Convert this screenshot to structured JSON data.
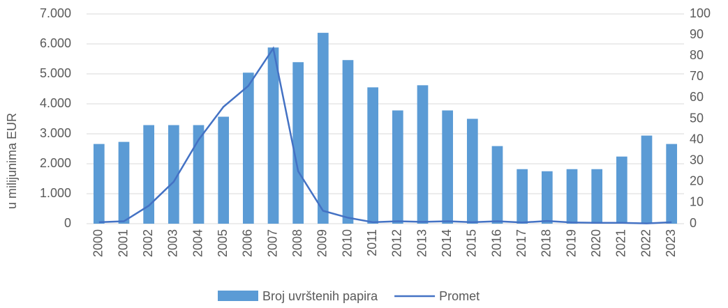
{
  "chart_data": {
    "type": "bar",
    "ylabel": "u milijunima EUR",
    "categories": [
      "2000",
      "2001",
      "2002",
      "2003",
      "2004",
      "2005",
      "2006",
      "2007",
      "2008",
      "2009",
      "2010",
      "2011",
      "2012",
      "2013",
      "2014",
      "2015",
      "2016",
      "2017",
      "2018",
      "2019",
      "2020",
      "2021",
      "2022",
      "2023"
    ],
    "series": [
      {
        "name": "Broj uvrštenih papira",
        "type": "bar",
        "axis": "y2",
        "color": "#5b9bd5",
        "values": [
          38,
          39,
          47,
          47,
          47,
          51,
          72,
          84,
          77,
          91,
          78,
          65,
          54,
          66,
          54,
          50,
          37,
          26,
          25,
          26,
          26,
          32,
          42,
          38
        ]
      },
      {
        "name": "Promet",
        "type": "line",
        "color": "#4472c4",
        "values": [
          50,
          80,
          600,
          1400,
          2800,
          3900,
          4600,
          5850,
          1750,
          430,
          200,
          50,
          80,
          60,
          80,
          50,
          80,
          40,
          90,
          40,
          30,
          30,
          10,
          50
        ]
      }
    ],
    "ylim": [
      0,
      7000
    ],
    "yticks": [
      0,
      {
        "value": 1000,
        "label": "1.000"
      },
      {
        "value": 2000,
        "label": "2.000"
      },
      {
        "value": 3000,
        "label": "3.000"
      },
      {
        "value": 4000,
        "label": "4.000"
      },
      {
        "value": 5000,
        "label": "5.000"
      },
      {
        "value": 6000,
        "label": "6.000"
      },
      {
        "value": 7000,
        "label": "7.000"
      }
    ],
    "y2lim": [
      0,
      100
    ],
    "y2ticks": [
      0,
      10,
      20,
      30,
      40,
      50,
      60,
      70,
      80,
      90,
      100
    ],
    "grid": true,
    "legend": "bottom"
  }
}
